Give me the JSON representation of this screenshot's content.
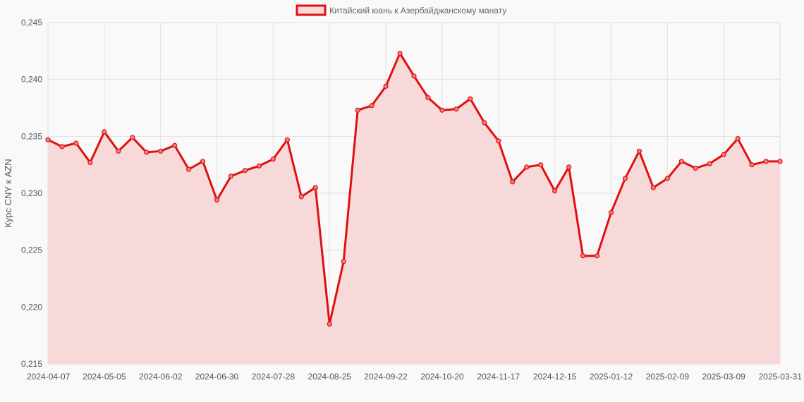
{
  "chart_data": {
    "type": "line",
    "title": "",
    "xlabel": "",
    "ylabel": "Курс CNY к AZN",
    "ylim": [
      0.215,
      0.245
    ],
    "yticks": [
      "0,215",
      "0,220",
      "0,225",
      "0,230",
      "0,235",
      "0,240",
      "0,245"
    ],
    "xticks": [
      "2024-04-07",
      "2024-05-05",
      "2024-06-02",
      "2024-06-30",
      "2024-07-28",
      "2024-08-25",
      "2024-09-22",
      "2024-10-20",
      "2024-11-17",
      "2024-12-15",
      "2025-01-12",
      "2025-02-09",
      "2025-03-09",
      "2025-03-31"
    ],
    "grid": true,
    "legend": "top-center",
    "colors": {
      "line": "#e01010",
      "fill": "#f7d9d9",
      "grid": "#e0e0e0"
    },
    "series": [
      {
        "name": "Китайский юань к Азербайджанскому манату",
        "values": [
          0.2347,
          0.2341,
          0.2344,
          0.2327,
          0.2354,
          0.2337,
          0.2349,
          0.2336,
          0.2337,
          0.2342,
          0.2321,
          0.2328,
          0.2294,
          0.2315,
          0.232,
          0.2324,
          0.233,
          0.2347,
          0.2297,
          0.2305,
          0.2185,
          0.224,
          0.2373,
          0.2377,
          0.2394,
          0.2423,
          0.2403,
          0.2384,
          0.2373,
          0.2374,
          0.2383,
          0.2362,
          0.2346,
          0.231,
          0.2323,
          0.2325,
          0.2302,
          0.2323,
          0.2245,
          0.2245,
          0.2283,
          0.2313,
          0.2337,
          0.2305,
          0.2313,
          0.2328,
          0.2322,
          0.2326,
          0.2334,
          0.2348,
          0.2325,
          0.2328,
          0.2328
        ]
      }
    ]
  }
}
